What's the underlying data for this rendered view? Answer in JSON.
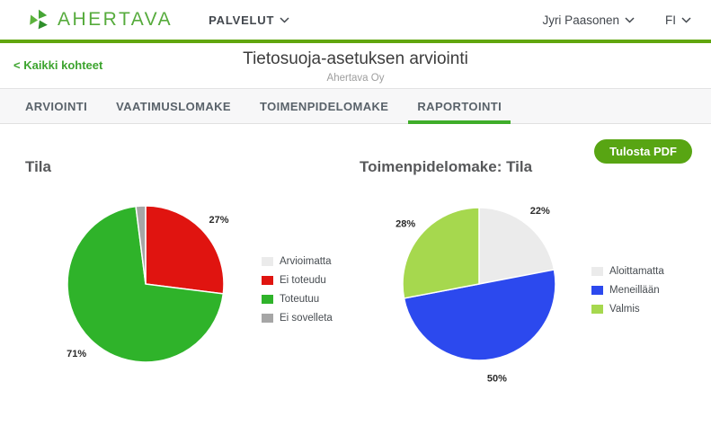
{
  "header": {
    "brand": "AHERTAVA",
    "nav_services": "PALVELUT",
    "user_name": "Jyri Paasonen",
    "language": "FI"
  },
  "subheader": {
    "back_link": "< Kaikki kohteet",
    "title": "Tietosuoja-asetuksen arviointi",
    "subtitle": "Ahertava Oy"
  },
  "tabs": [
    {
      "label": "ARVIOINTI",
      "active": false
    },
    {
      "label": "VAATIMUSLOMAKE",
      "active": false
    },
    {
      "label": "TOIMENPIDELOMAKE",
      "active": false
    },
    {
      "label": "RAPORTOINTI",
      "active": true
    }
  ],
  "toolbar": {
    "print_pdf_label": "Tulosta PDF"
  },
  "colors": {
    "brand_green": "#56ab3c",
    "top_bar_green": "#61a60e",
    "active_tab_green": "#3fad2a",
    "button_green": "#58a513",
    "link_green": "#3da42f"
  },
  "chart_data": [
    {
      "type": "pie",
      "title": "Tila",
      "labels": [
        "Arvioimatta",
        "Ei toteudu",
        "Toteutuu",
        "Ei sovelleta"
      ],
      "values": [
        0,
        27,
        71,
        2
      ],
      "colors": [
        "#ebebeb",
        "#e01410",
        "#2fb32a",
        "#a6a6a6"
      ],
      "pct_labels": [
        "",
        "27%",
        "71%",
        ""
      ],
      "legend_position": "right",
      "start_angle": "12-oclock",
      "direction": "clockwise"
    },
    {
      "type": "pie",
      "title": "Toimenpidelomake: Tila",
      "labels": [
        "Aloittamatta",
        "Meneillään",
        "Valmis"
      ],
      "values": [
        22,
        50,
        28
      ],
      "colors": [
        "#ebebeb",
        "#2c49ee",
        "#a6d84e"
      ],
      "pct_labels": [
        "22%",
        "50%",
        "28%"
      ],
      "legend_position": "right",
      "start_angle": "12-oclock",
      "direction": "clockwise"
    }
  ]
}
